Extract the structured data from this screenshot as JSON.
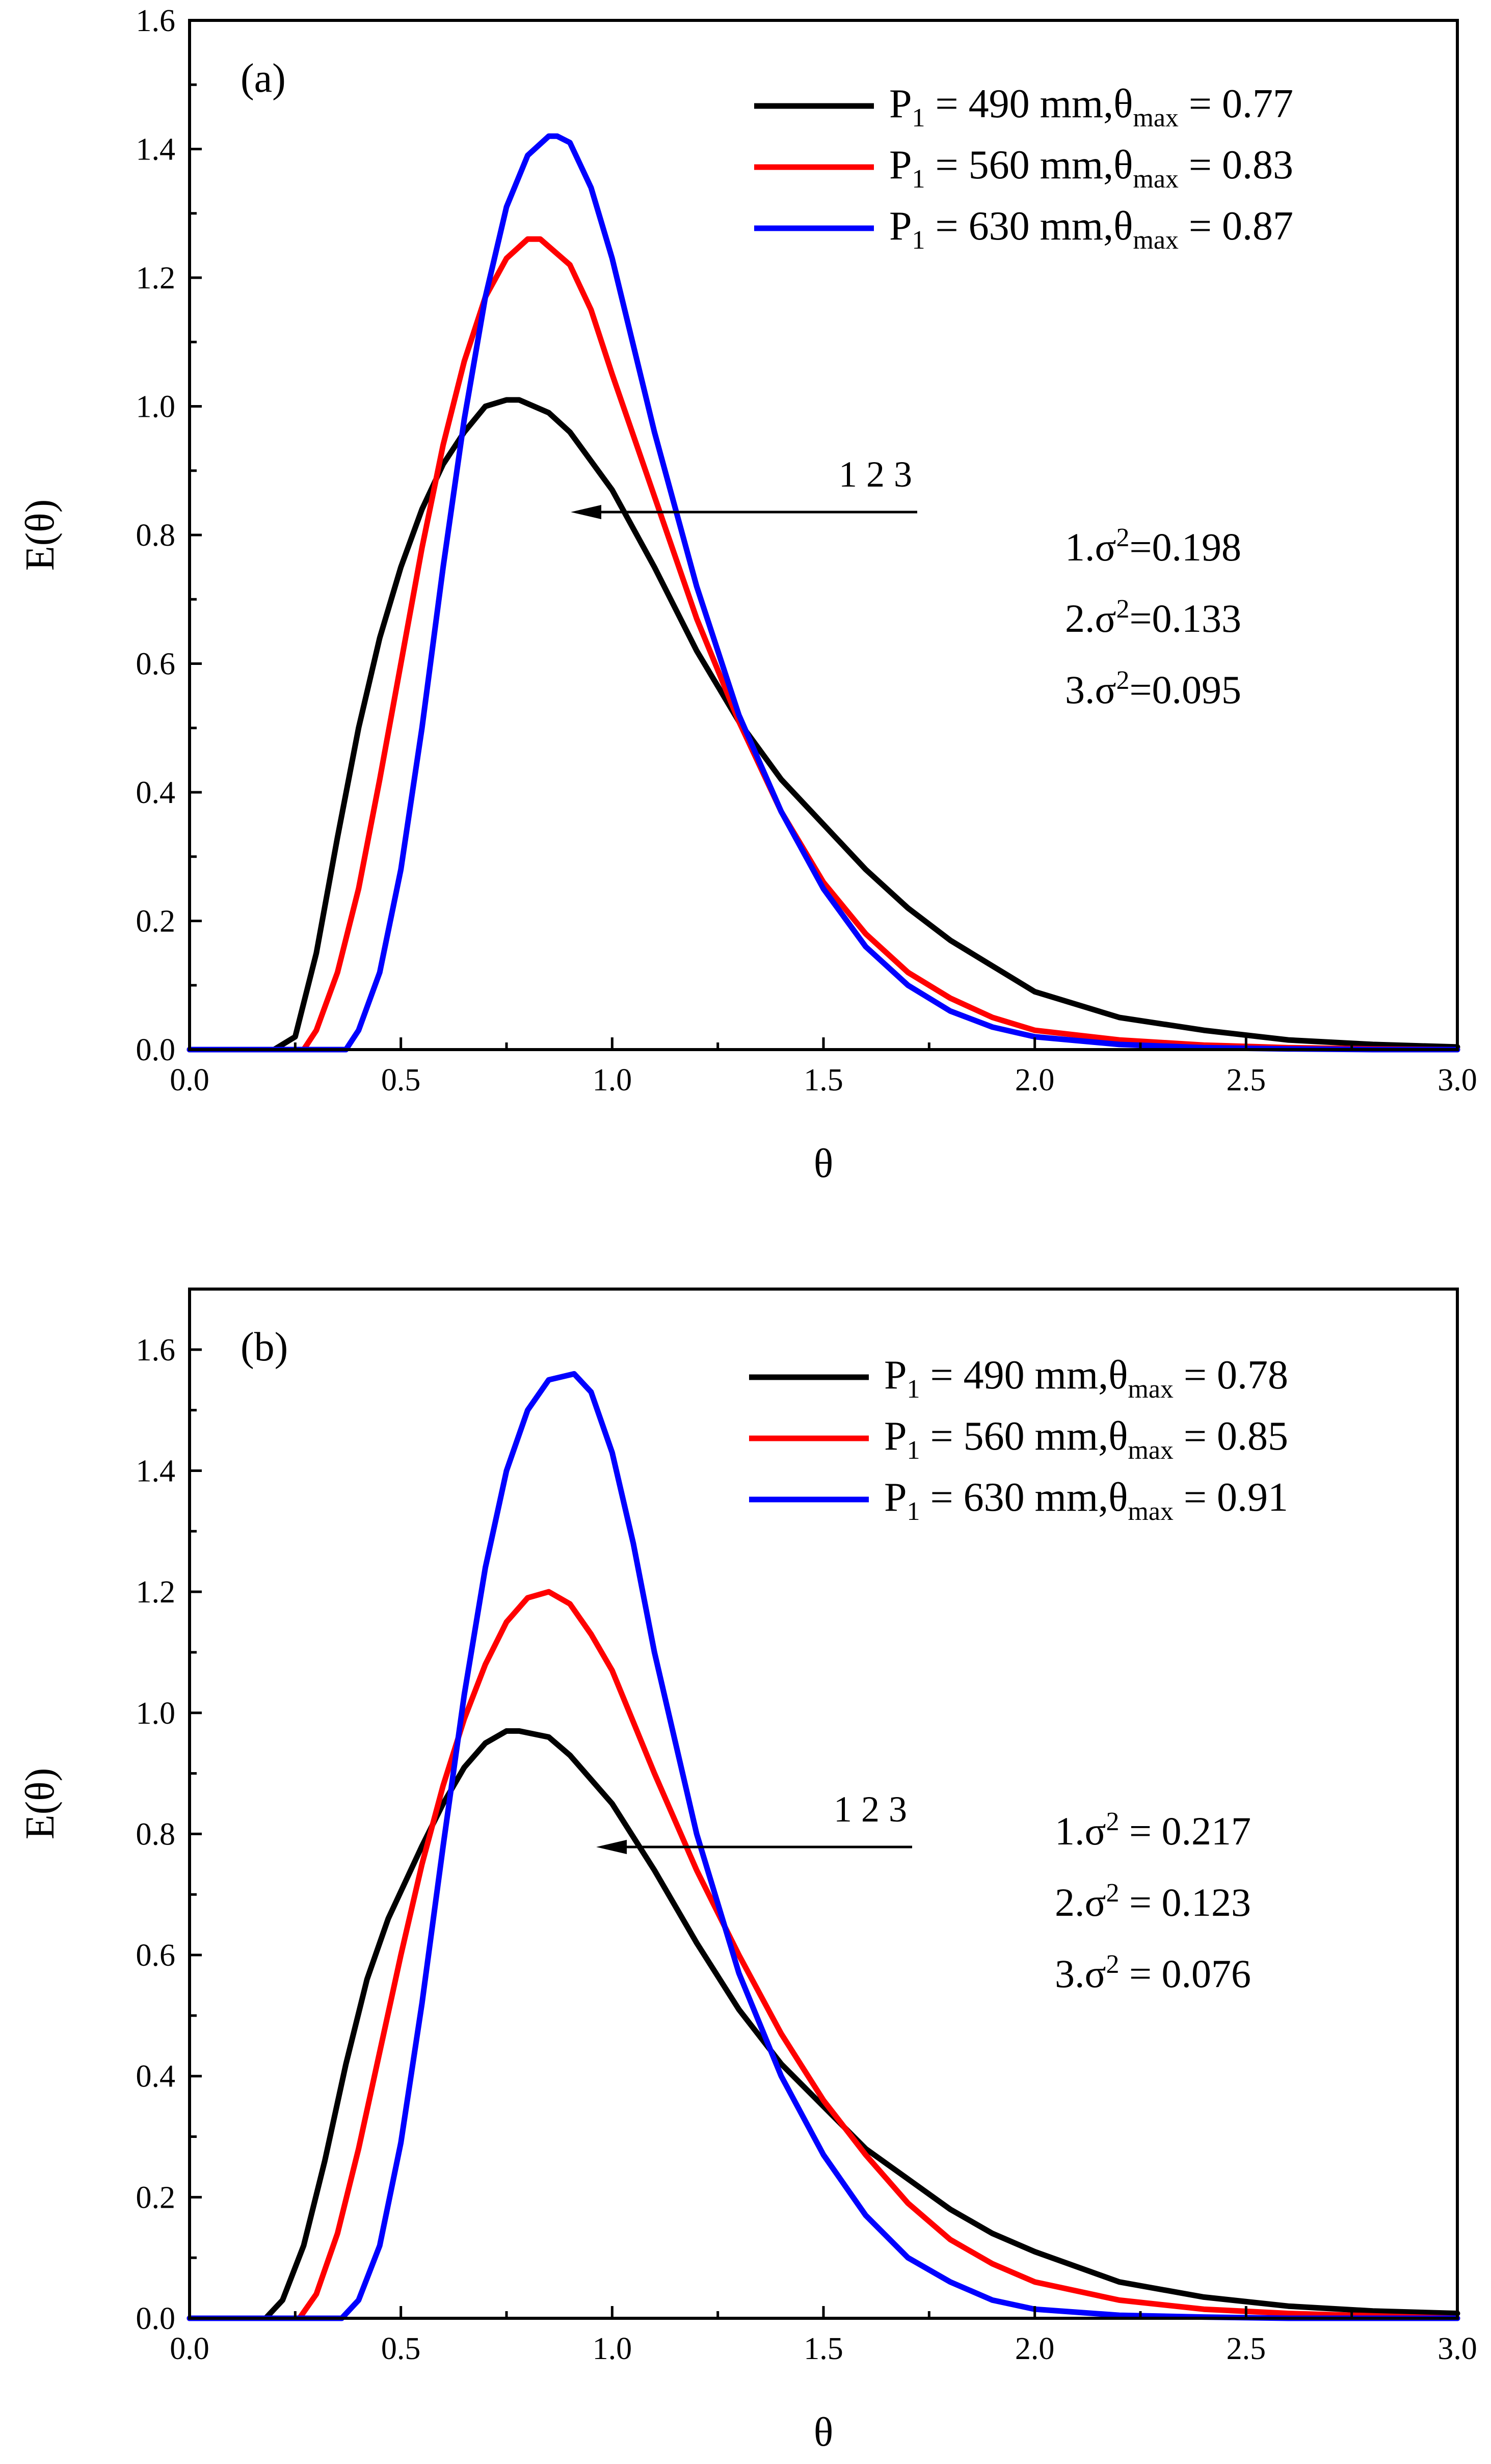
{
  "chart_data": [
    {
      "panel_label": "(a)",
      "type": "line",
      "xlabel": "θ",
      "ylabel": "E(θ)",
      "xlim": [
        0.0,
        3.0
      ],
      "ylim": [
        0.0,
        1.6
      ],
      "xticks": [
        "0.0",
        "0.5",
        "1.0",
        "1.5",
        "2.0",
        "2.5",
        "3.0"
      ],
      "yticks": [
        "0.0",
        "0.2",
        "0.4",
        "0.6",
        "0.8",
        "1.0",
        "1.2",
        "1.4",
        "1.6"
      ],
      "legend_position": "top-right",
      "series": [
        {
          "legend": {
            "p": "P",
            "sub": "1",
            "mid": " = 490 mm,θ",
            "max": "max",
            "end": " = 0.77"
          },
          "color": "#000000",
          "x": [
            0.0,
            0.2,
            0.25,
            0.3,
            0.35,
            0.4,
            0.45,
            0.5,
            0.55,
            0.6,
            0.65,
            0.7,
            0.75,
            0.78,
            0.85,
            0.9,
            1.0,
            1.1,
            1.2,
            1.3,
            1.4,
            1.5,
            1.6,
            1.7,
            1.8,
            1.9,
            2.0,
            2.2,
            2.4,
            2.6,
            2.8,
            3.0
          ],
          "y": [
            0.0,
            0.0,
            0.02,
            0.15,
            0.33,
            0.5,
            0.64,
            0.75,
            0.84,
            0.91,
            0.96,
            1.0,
            1.01,
            1.01,
            0.99,
            0.96,
            0.87,
            0.75,
            0.62,
            0.51,
            0.42,
            0.35,
            0.28,
            0.22,
            0.17,
            0.13,
            0.09,
            0.05,
            0.03,
            0.015,
            0.008,
            0.004
          ]
        },
        {
          "legend": {
            "p": "P",
            "sub": "1",
            "mid": " = 560 mm,θ",
            "max": "max",
            "end": " = 0.83"
          },
          "color": "#ff0000",
          "x": [
            0.0,
            0.27,
            0.3,
            0.35,
            0.4,
            0.45,
            0.5,
            0.55,
            0.6,
            0.65,
            0.7,
            0.75,
            0.8,
            0.83,
            0.9,
            0.95,
            1.0,
            1.1,
            1.2,
            1.3,
            1.4,
            1.5,
            1.6,
            1.7,
            1.8,
            1.9,
            2.0,
            2.2,
            2.4,
            2.6,
            2.8,
            3.0
          ],
          "y": [
            0.0,
            0.0,
            0.03,
            0.12,
            0.25,
            0.42,
            0.6,
            0.78,
            0.94,
            1.07,
            1.17,
            1.23,
            1.26,
            1.26,
            1.22,
            1.15,
            1.05,
            0.86,
            0.67,
            0.51,
            0.37,
            0.26,
            0.18,
            0.12,
            0.08,
            0.05,
            0.03,
            0.015,
            0.007,
            0.003,
            0.001,
            0.0
          ]
        },
        {
          "legend": {
            "p": "P",
            "sub": "1",
            "mid": " = 630 mm,θ",
            "max": "max",
            "end": " = 0.87"
          },
          "color": "#0000ff",
          "x": [
            0.0,
            0.37,
            0.4,
            0.45,
            0.5,
            0.55,
            0.6,
            0.65,
            0.7,
            0.75,
            0.8,
            0.85,
            0.87,
            0.9,
            0.95,
            1.0,
            1.1,
            1.2,
            1.3,
            1.4,
            1.5,
            1.6,
            1.7,
            1.8,
            1.9,
            2.0,
            2.2,
            2.4,
            2.6,
            2.8,
            3.0
          ],
          "y": [
            0.0,
            0.0,
            0.03,
            0.12,
            0.28,
            0.5,
            0.75,
            0.98,
            1.17,
            1.31,
            1.39,
            1.42,
            1.42,
            1.41,
            1.34,
            1.23,
            0.96,
            0.72,
            0.52,
            0.37,
            0.25,
            0.16,
            0.1,
            0.06,
            0.035,
            0.02,
            0.008,
            0.003,
            0.001,
            0.0,
            0.0
          ]
        }
      ],
      "annotations": {
        "arrow_label": "1  2  3",
        "sigma": [
          {
            "pre": "1.σ",
            "sup": "2",
            "post": "=0.198"
          },
          {
            "pre": "2.σ",
            "sup": "2",
            "post": "=0.133"
          },
          {
            "pre": "3.σ",
            "sup": "2",
            "post": "=0.095"
          }
        ]
      }
    },
    {
      "panel_label": "(b)",
      "type": "line",
      "xlabel": "θ",
      "ylabel": "E(θ)",
      "xlim": [
        0.0,
        3.0
      ],
      "ylim": [
        0.0,
        1.7
      ],
      "xticks": [
        "0.0",
        "0.5",
        "1.0",
        "1.5",
        "2.0",
        "2.5",
        "3.0"
      ],
      "yticks": [
        "0.0",
        "0.2",
        "0.4",
        "0.6",
        "0.8",
        "1.0",
        "1.2",
        "1.4",
        "1.6"
      ],
      "legend_position": "top-right",
      "series": [
        {
          "legend": {
            "p": "P",
            "sub": "1",
            "mid": " = 490 mm,θ",
            "max": "max",
            "end": " = 0.78"
          },
          "color": "#000000",
          "x": [
            0.0,
            0.18,
            0.22,
            0.27,
            0.32,
            0.37,
            0.42,
            0.47,
            0.55,
            0.6,
            0.65,
            0.7,
            0.75,
            0.78,
            0.85,
            0.9,
            1.0,
            1.1,
            1.2,
            1.3,
            1.4,
            1.5,
            1.6,
            1.7,
            1.8,
            1.9,
            2.0,
            2.2,
            2.4,
            2.6,
            2.8,
            3.0
          ],
          "y": [
            0.0,
            0.0,
            0.03,
            0.12,
            0.26,
            0.42,
            0.56,
            0.66,
            0.78,
            0.85,
            0.91,
            0.95,
            0.97,
            0.97,
            0.96,
            0.93,
            0.85,
            0.74,
            0.62,
            0.51,
            0.42,
            0.35,
            0.28,
            0.23,
            0.18,
            0.14,
            0.11,
            0.06,
            0.035,
            0.02,
            0.012,
            0.008
          ]
        },
        {
          "legend": {
            "p": "P",
            "sub": "1",
            "mid": " = 560 mm,θ",
            "max": "max",
            "end": " = 0.85"
          },
          "color": "#ff0000",
          "x": [
            0.0,
            0.26,
            0.3,
            0.35,
            0.4,
            0.45,
            0.5,
            0.55,
            0.6,
            0.65,
            0.7,
            0.75,
            0.8,
            0.85,
            0.9,
            0.95,
            1.0,
            1.1,
            1.2,
            1.3,
            1.4,
            1.5,
            1.6,
            1.7,
            1.8,
            1.9,
            2.0,
            2.2,
            2.4,
            2.6,
            2.8,
            3.0
          ],
          "y": [
            0.0,
            0.0,
            0.04,
            0.14,
            0.28,
            0.44,
            0.6,
            0.75,
            0.88,
            0.99,
            1.08,
            1.15,
            1.19,
            1.2,
            1.18,
            1.13,
            1.07,
            0.9,
            0.74,
            0.6,
            0.47,
            0.36,
            0.27,
            0.19,
            0.13,
            0.09,
            0.06,
            0.03,
            0.015,
            0.008,
            0.004,
            0.0
          ]
        },
        {
          "legend": {
            "p": "P",
            "sub": "1",
            "mid": " = 630 mm,θ",
            "max": "max",
            "end": " = 0.91"
          },
          "color": "#0000ff",
          "x": [
            0.0,
            0.36,
            0.4,
            0.45,
            0.5,
            0.55,
            0.6,
            0.65,
            0.7,
            0.75,
            0.8,
            0.85,
            0.91,
            0.95,
            1.0,
            1.05,
            1.1,
            1.2,
            1.3,
            1.4,
            1.5,
            1.6,
            1.7,
            1.8,
            1.9,
            2.0,
            2.2,
            2.4,
            2.6,
            2.8,
            3.0
          ],
          "y": [
            0.0,
            0.0,
            0.03,
            0.12,
            0.29,
            0.52,
            0.78,
            1.03,
            1.24,
            1.4,
            1.5,
            1.55,
            1.56,
            1.53,
            1.43,
            1.28,
            1.1,
            0.8,
            0.57,
            0.4,
            0.27,
            0.17,
            0.1,
            0.06,
            0.03,
            0.015,
            0.005,
            0.002,
            0.0,
            0.0,
            0.0
          ]
        }
      ],
      "annotations": {
        "arrow_label": "1  2  3",
        "sigma": [
          {
            "pre": "1.σ",
            "sup": "2",
            "post": " = 0.217"
          },
          {
            "pre": "2.σ",
            "sup": "2",
            "post": " = 0.123"
          },
          {
            "pre": "3.σ",
            "sup": "2",
            "post": " = 0.076"
          }
        ]
      }
    }
  ]
}
